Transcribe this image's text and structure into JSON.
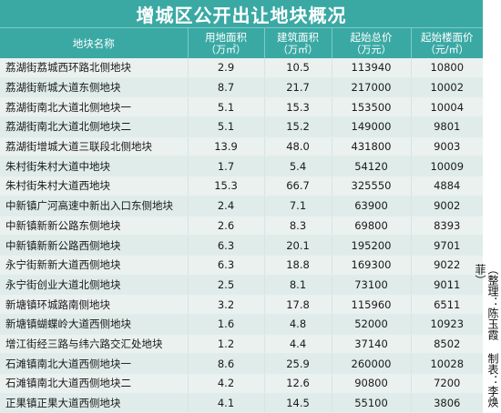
{
  "title": "增城区公开出让地块概况",
  "headers": [
    {
      "label": "地块名称",
      "unit": ""
    },
    {
      "label": "用地面积",
      "unit": "（万㎡）"
    },
    {
      "label": "建筑面积",
      "unit": "（万㎡）"
    },
    {
      "label": "起始总价",
      "unit": "（万元）"
    },
    {
      "label": "起始楼面价",
      "unit": "（元/㎡）"
    }
  ],
  "rows": [
    {
      "name": "荔湖街荔城西环路北侧地块",
      "area": "2.9",
      "building": "10.5",
      "total_price": "113940",
      "floor_price": "10800"
    },
    {
      "name": "荔湖街新城大道东侧地块",
      "area": "8.7",
      "building": "21.7",
      "total_price": "217000",
      "floor_price": "10002"
    },
    {
      "name": "荔湖街南北大道北侧地块一",
      "area": "5.1",
      "building": "15.3",
      "total_price": "153500",
      "floor_price": "10004"
    },
    {
      "name": "荔湖街南北大道北侧地块二",
      "area": "5.1",
      "building": "15.2",
      "total_price": "149000",
      "floor_price": "9801"
    },
    {
      "name": "荔湖街增城大道三联段北侧地块",
      "area": "13.9",
      "building": "48.0",
      "total_price": "431800",
      "floor_price": "9003"
    },
    {
      "name": "朱村街朱村大道中地块",
      "area": "1.7",
      "building": "5.4",
      "total_price": "54120",
      "floor_price": "10009"
    },
    {
      "name": "朱村街朱村大道西地块",
      "area": "15.3",
      "building": "66.7",
      "total_price": "325550",
      "floor_price": "4884"
    },
    {
      "name": "中新镇广河高速中新出入口东侧地块",
      "area": "2.4",
      "building": "7.1",
      "total_price": "63900",
      "floor_price": "9002"
    },
    {
      "name": "中新镇新新公路东侧地块",
      "area": "2.6",
      "building": "8.3",
      "total_price": "69800",
      "floor_price": "8393"
    },
    {
      "name": "中新镇新新公路西侧地块",
      "area": "6.3",
      "building": "20.1",
      "total_price": "195200",
      "floor_price": "9701"
    },
    {
      "name": "永宁街新新大道西侧地块",
      "area": "6.3",
      "building": "18.8",
      "total_price": "169300",
      "floor_price": "9022"
    },
    {
      "name": "永宁街创业大道北侧地块",
      "area": "2.5",
      "building": "8.1",
      "total_price": "73100",
      "floor_price": "9011"
    },
    {
      "name": "新塘镇环城路南侧地块",
      "area": "3.2",
      "building": "17.8",
      "total_price": "115960",
      "floor_price": "6511"
    },
    {
      "name": "新塘镇蝴蝶岭大道西侧地块",
      "area": "1.6",
      "building": "4.8",
      "total_price": "52000",
      "floor_price": "10923"
    },
    {
      "name": "增江街经三路与纬六路交汇处地块",
      "area": "1.2",
      "building": "4.4",
      "total_price": "37140",
      "floor_price": "8502"
    },
    {
      "name": "石滩镇南北大道西侧地块一",
      "area": "8.6",
      "building": "25.9",
      "total_price": "260000",
      "floor_price": "10028"
    },
    {
      "name": "石滩镇南北大道西侧地块二",
      "area": "4.2",
      "building": "12.6",
      "total_price": "90800",
      "floor_price": "7200"
    },
    {
      "name": "正果镇正果大道西侧地块",
      "area": "4.1",
      "building": "14.5",
      "total_price": "55100",
      "floor_price": "3806"
    }
  ],
  "credit": "（整理：陈玉霞 制表：李焕菲）",
  "colors": {
    "header_bg": "#3aa9a4",
    "row_odd": "#eaf1ef",
    "row_even": "#dfece9"
  }
}
